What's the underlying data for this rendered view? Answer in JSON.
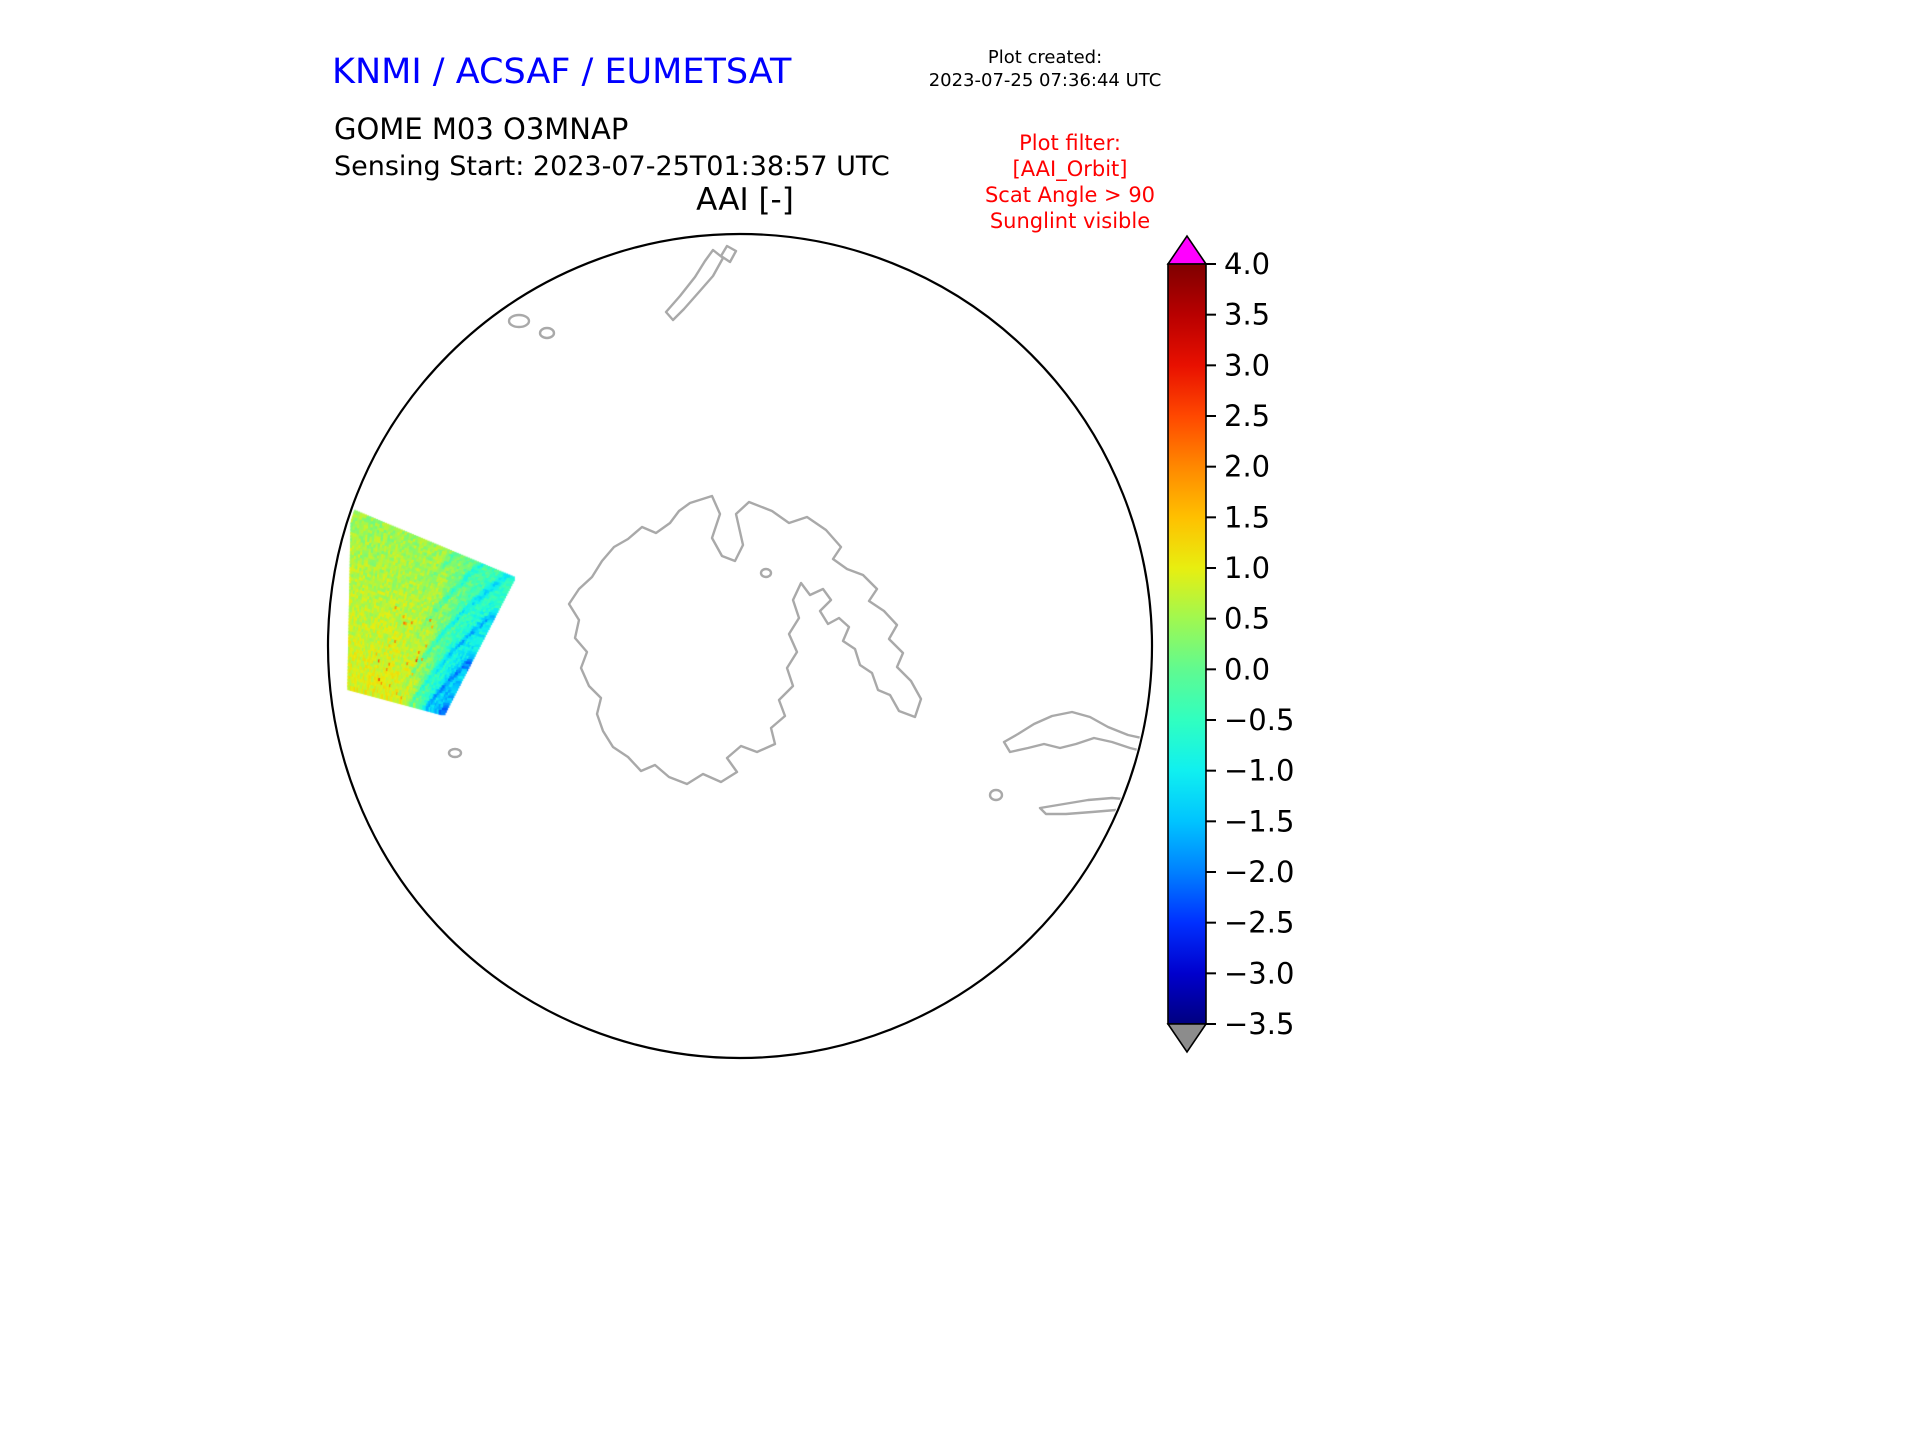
{
  "header": {
    "agency_title": "KNMI / ACSAF / EUMETSAT",
    "agency_title_color": "#0000ff",
    "plot_created_label": "Plot created:",
    "plot_created_value": "2023-07-25 07:36:44 UTC",
    "product_title": "GOME M03 O3MNAP",
    "sensing_start": "Sensing Start: 2023-07-25T01:38:57 UTC",
    "plot_title": "AAI [-]",
    "filter_color": "#ff0000",
    "filter_lines": [
      "Plot filter:",
      "[AAI_Orbit]",
      "Scat Angle > 90",
      "Sunglint visible"
    ]
  },
  "chart_data": {
    "type": "heatmap",
    "title": "AAI [-]",
    "subtitle": "GOME M03 O3MNAP",
    "projection": "South polar stereographic view centred on Antarctica",
    "sensing_start": "2023-07-25T01:38:57 UTC",
    "plot_created": "2023-07-25 07:36:44 UTC",
    "filters": [
      "[AAI_Orbit]",
      "Scat Angle > 90",
      "Sunglint visible"
    ],
    "colorbar": {
      "label": "AAI [-]",
      "range": [
        -3.5,
        4.0
      ],
      "ticks": [
        4.0,
        3.5,
        3.0,
        2.5,
        2.0,
        1.5,
        1.0,
        0.5,
        0.0,
        -0.5,
        -1.0,
        -1.5,
        -2.0,
        -2.5,
        -3.0,
        -3.5
      ],
      "over_arrow_color": "#ff00ff",
      "under_arrow_color": "#8c8c8c",
      "stops": [
        {
          "value": -3.5,
          "color": "#000080"
        },
        {
          "value": -3.0,
          "color": "#0000cd"
        },
        {
          "value": -2.5,
          "color": "#0030ff"
        },
        {
          "value": -2.0,
          "color": "#0080ff"
        },
        {
          "value": -1.5,
          "color": "#00c4ff"
        },
        {
          "value": -1.0,
          "color": "#10f0f0"
        },
        {
          "value": -0.5,
          "color": "#30ffc0"
        },
        {
          "value": 0.0,
          "color": "#60fa90"
        },
        {
          "value": 0.5,
          "color": "#a0f850"
        },
        {
          "value": 1.0,
          "color": "#e8ee10"
        },
        {
          "value": 1.5,
          "color": "#ffc000"
        },
        {
          "value": 2.0,
          "color": "#ff8800"
        },
        {
          "value": 2.5,
          "color": "#ff4800"
        },
        {
          "value": 3.0,
          "color": "#e81000"
        },
        {
          "value": 3.5,
          "color": "#b80000"
        },
        {
          "value": 4.0,
          "color": "#7f0000"
        }
      ]
    },
    "swath": {
      "description": "Single GOME-2 orbit AAI swath west of the map centre; values mostly between -2.5 and +2.0, greenish-yellow over most of the swath with cyan/blue streaks near the eastern edge and scattered orange (AAI ~1.5-2.5) pixels in the lower middle part",
      "corners": [
        [
          352,
          510
        ],
        [
          514,
          578
        ],
        [
          443,
          714
        ],
        [
          349,
          689
        ]
      ],
      "value_range": [
        -2.5,
        2.0
      ]
    }
  }
}
